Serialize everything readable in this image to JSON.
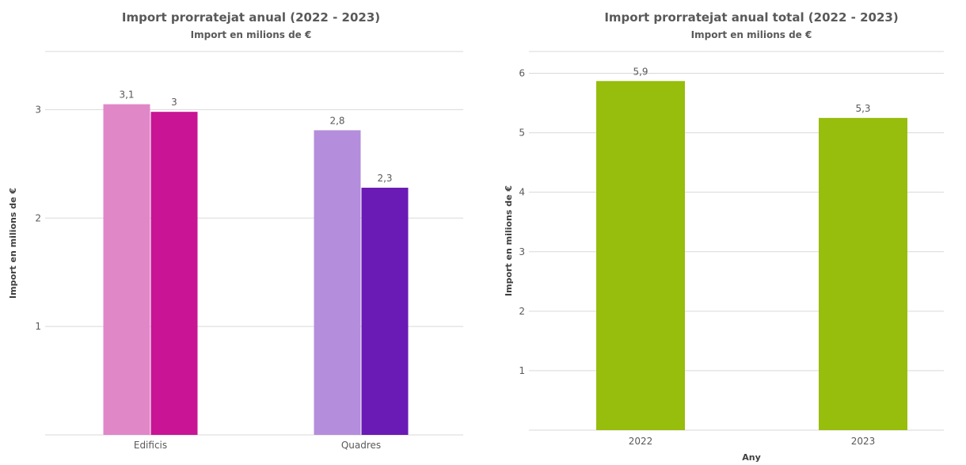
{
  "chart_data": [
    {
      "type": "bar",
      "title": "Import prorratejat anual (2022 - 2023)",
      "subtitle": "Import en milions de €",
      "ylabel": "Import en milions de €",
      "xlabel": "",
      "categories": [
        "Edificis",
        "Quadres"
      ],
      "series": [
        {
          "values": [
            3.05,
            2.81
          ],
          "labels": [
            "3,1",
            "2,8"
          ],
          "colors": [
            "#e087c8",
            "#b48ddc"
          ]
        },
        {
          "values": [
            2.98,
            2.28
          ],
          "labels": [
            "3",
            "2,3"
          ],
          "colors": [
            "#c81495",
            "#6a1ab5"
          ]
        }
      ],
      "ylim": [
        0,
        3.5
      ],
      "yticks": [
        1,
        2,
        3
      ],
      "ytick_labels": [
        "1",
        "2",
        "3"
      ],
      "grid": true,
      "legend": "none"
    },
    {
      "type": "bar",
      "title": "Import prorratejat anual total (2022 - 2023)",
      "subtitle": "Import en milions de €",
      "ylabel": "Import en milions de €",
      "xlabel": "Any",
      "categories": [
        "2022",
        "2023"
      ],
      "series": [
        {
          "values": [
            5.87,
            5.25
          ],
          "labels": [
            "5,9",
            "5,3"
          ],
          "colors": [
            "#97bd0d",
            "#97bd0d"
          ]
        }
      ],
      "ylim": [
        0,
        6.3
      ],
      "yticks": [
        1,
        2,
        3,
        4,
        5,
        6
      ],
      "ytick_labels": [
        "1",
        "2",
        "3",
        "4",
        "5",
        "6"
      ],
      "grid": true,
      "legend": "none"
    }
  ]
}
